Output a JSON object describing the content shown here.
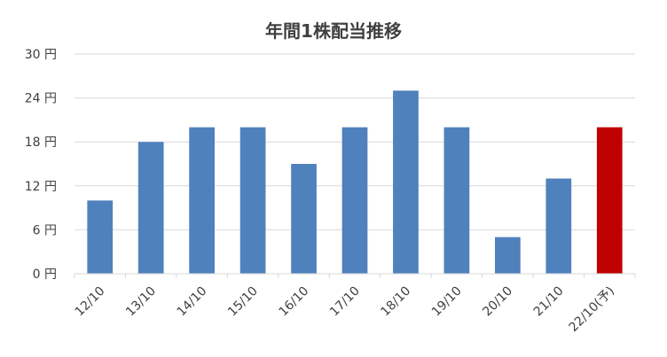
{
  "chart_data": {
    "type": "bar",
    "title": "年間1株配当推移",
    "xlabel": "",
    "ylabel": "",
    "categories": [
      "12/10",
      "13/10",
      "14/10",
      "15/10",
      "16/10",
      "17/10",
      "18/10",
      "19/10",
      "20/10",
      "21/10",
      "22/10(予)"
    ],
    "series": [
      {
        "values": [
          10,
          18,
          20,
          20,
          15,
          20,
          25,
          20,
          5,
          13,
          20
        ],
        "colors": [
          "#4f81bd",
          "#4f81bd",
          "#4f81bd",
          "#4f81bd",
          "#4f81bd",
          "#4f81bd",
          "#4f81bd",
          "#4f81bd",
          "#4f81bd",
          "#4f81bd",
          "#c00000"
        ]
      }
    ],
    "ylim": [
      0,
      30
    ],
    "yticks": [
      0,
      6,
      12,
      18,
      24,
      30
    ],
    "ytick_labels": [
      "0 円",
      "6 円",
      "12 円",
      "18 円",
      "24 円",
      "30 円"
    ],
    "grid": true,
    "legend": "none"
  }
}
